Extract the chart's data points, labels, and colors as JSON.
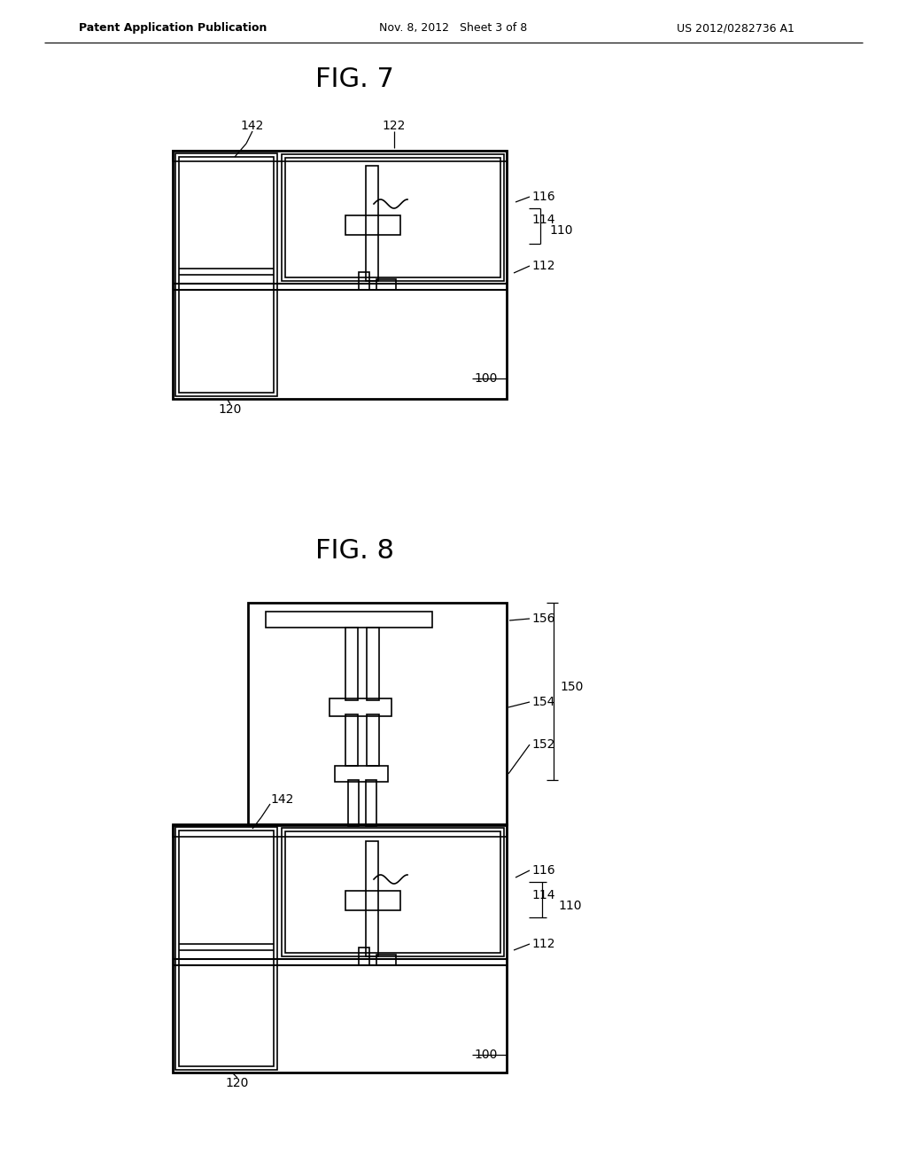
{
  "bg_color": "#ffffff",
  "line_color": "#000000",
  "header_left": "Patent Application Publication",
  "header_center": "Nov. 8, 2012   Sheet 3 of 8",
  "header_right": "US 2012/0282736 A1",
  "fig7_title": "FIG. 7",
  "fig8_title": "FIG. 8"
}
